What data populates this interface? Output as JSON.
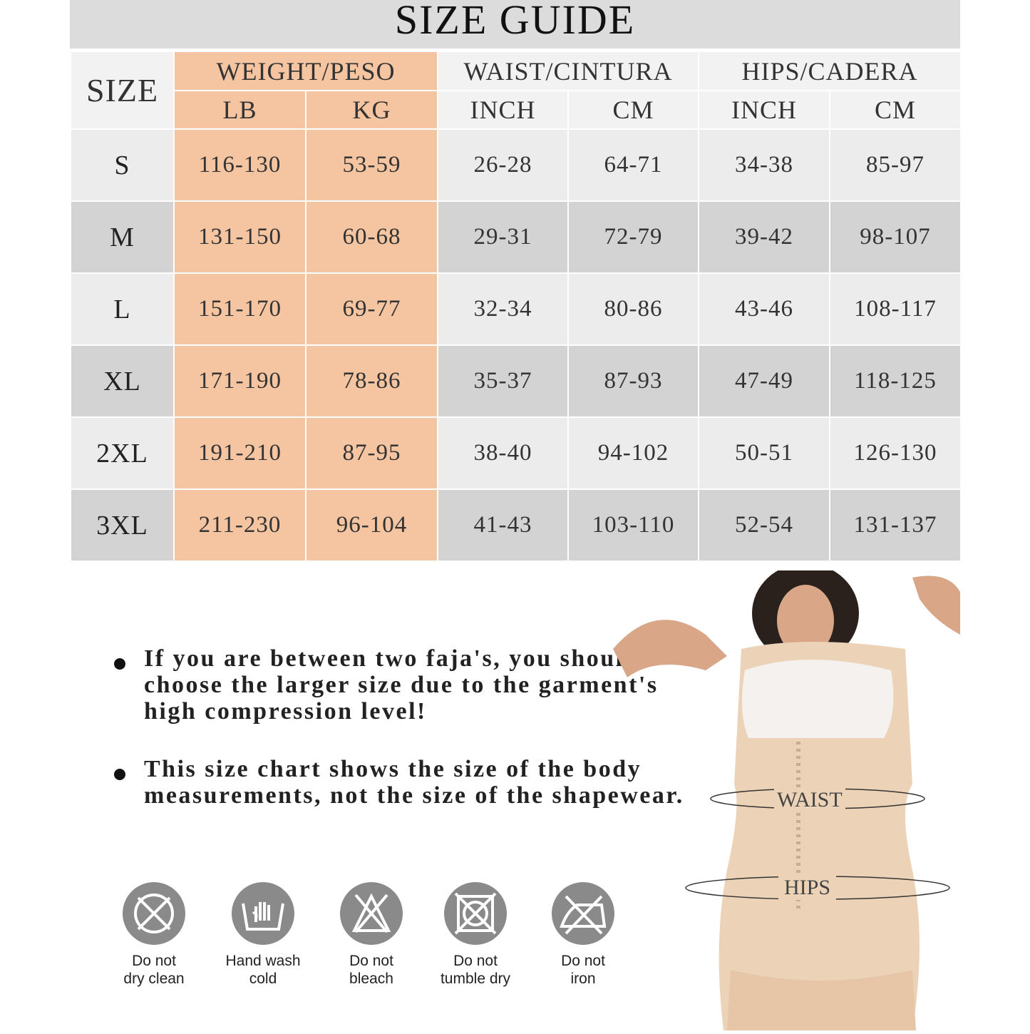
{
  "title": "SIZE GUIDE",
  "headers": {
    "size": "SIZE",
    "weight": "WEIGHT/PESO",
    "waist": "WAIST/CINTURA",
    "hips": "HIPS/CADERA",
    "lb": "LB",
    "kg": "KG",
    "waist_inch": "INCH",
    "waist_cm": "CM",
    "hips_inch": "INCH",
    "hips_cm": "CM"
  },
  "rows": [
    {
      "size": "S",
      "lb": "116-130",
      "kg": "53-59",
      "waist_inch": "26-28",
      "waist_cm": "64-71",
      "hips_inch": "34-38",
      "hips_cm": "85-97"
    },
    {
      "size": "M",
      "lb": "131-150",
      "kg": "60-68",
      "waist_inch": "29-31",
      "waist_cm": "72-79",
      "hips_inch": "39-42",
      "hips_cm": "98-107"
    },
    {
      "size": "L",
      "lb": "151-170",
      "kg": "69-77",
      "waist_inch": "32-34",
      "waist_cm": "80-86",
      "hips_inch": "43-46",
      "hips_cm": "108-117"
    },
    {
      "size": "XL",
      "lb": "171-190",
      "kg": "78-86",
      "waist_inch": "35-37",
      "waist_cm": "87-93",
      "hips_inch": "47-49",
      "hips_cm": "118-125"
    },
    {
      "size": "2XL",
      "lb": "191-210",
      "kg": "87-95",
      "waist_inch": "38-40",
      "waist_cm": "94-102",
      "hips_inch": "50-51",
      "hips_cm": "126-130"
    },
    {
      "size": "3XL",
      "lb": "211-230",
      "kg": "96-104",
      "waist_inch": "41-43",
      "waist_cm": "103-110",
      "hips_inch": "52-54",
      "hips_cm": "131-137"
    }
  ],
  "notes": [
    "If you are between two faja's, you should choose the larger size due to the garment's high compression level!",
    "This size chart shows the size of the body measurements, not the size of the shapewear."
  ],
  "care": [
    {
      "icon": "no-dry-clean-icon",
      "l1": "Do not",
      "l2": "dry clean"
    },
    {
      "icon": "hand-wash-icon",
      "l1": "Hand wash",
      "l2": "cold"
    },
    {
      "icon": "no-bleach-icon",
      "l1": "Do not",
      "l2": "bleach"
    },
    {
      "icon": "no-tumble-dry-icon",
      "l1": "Do not",
      "l2": "tumble dry"
    },
    {
      "icon": "no-iron-icon",
      "l1": "Do not",
      "l2": "iron"
    }
  ],
  "photo": {
    "waist_label": "WAIST",
    "hips_label": "HIPS"
  },
  "colors": {
    "weight_column": "#f5c4a0",
    "row_light": "#ececec",
    "row_dark": "#d3d3d3",
    "title_band": "#dcdcdc",
    "icon_circle": "#8a8a8a"
  }
}
